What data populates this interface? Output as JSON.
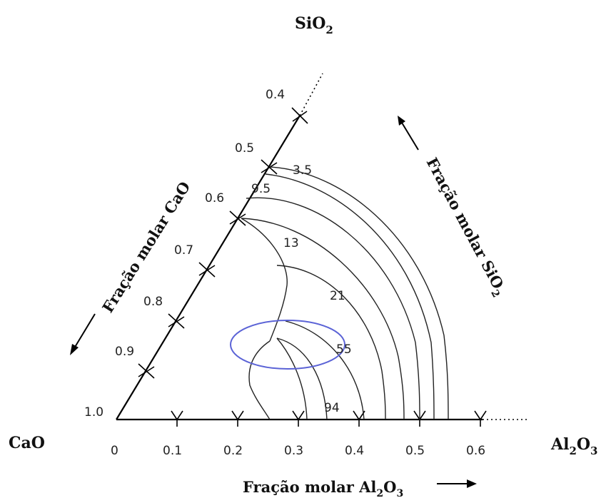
{
  "vertices": {
    "top": {
      "main": "SiO",
      "sub": "2"
    },
    "left": {
      "main": "CaO",
      "sub": ""
    },
    "right": {
      "main": "Al",
      "sub1": "2",
      "mid": "O",
      "sub2": "3"
    }
  },
  "bottom_ticks": [
    "0",
    "0.1",
    "0.2",
    "0.3",
    "0.4",
    "0.5",
    "0.6"
  ],
  "left_ticks": [
    "0.4",
    "0.5",
    "0.6",
    "0.7",
    "0.8",
    "0.9",
    "1.0"
  ],
  "iso_labels": [
    "3.5",
    "9.5",
    "13",
    "21",
    "55",
    "94"
  ],
  "axis_titles": {
    "bottom": {
      "pre": "Fração molar Al",
      "sub1": "2",
      "mid": "O",
      "sub2": "3"
    },
    "left": "Fração molar CaO",
    "right": {
      "pre": "Fração molar SiO",
      "sub": "2"
    }
  },
  "colors": {
    "highlight_ellipse": "#5b63d6",
    "lines": "#000000"
  }
}
